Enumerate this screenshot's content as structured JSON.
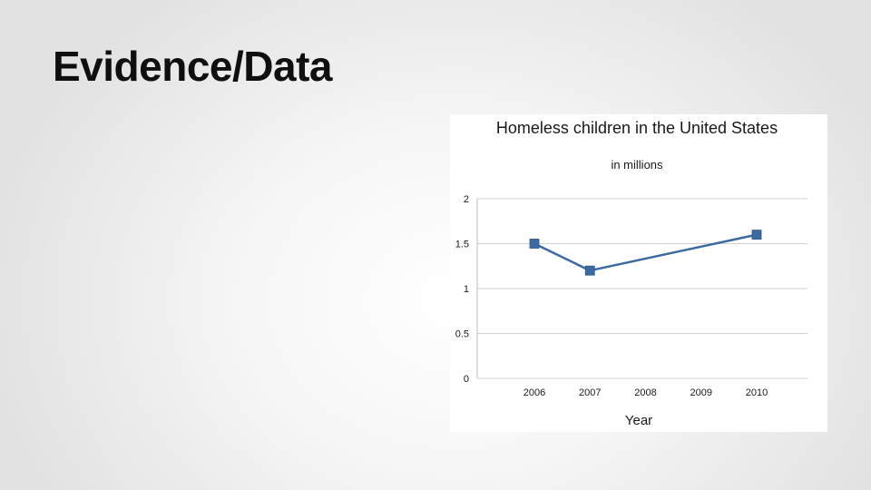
{
  "slide": {
    "title": "Evidence/Data"
  },
  "chart_data": {
    "type": "line",
    "title": "Homeless children in the United States",
    "subtitle": "in millions",
    "xlabel": "Year",
    "ylabel": "",
    "categories": [
      "2006",
      "2007",
      "2008",
      "2009",
      "2010"
    ],
    "series": [
      {
        "values": [
          1.5,
          1.2,
          null,
          null,
          1.6
        ],
        "color": "#3b6aa3",
        "marker": "square"
      }
    ],
    "ylim": [
      0,
      2
    ],
    "yticks": [
      0,
      0.5,
      1,
      1.5,
      2
    ],
    "ytick_labels": [
      "0",
      "0.5",
      "1",
      "1.5",
      "2"
    ],
    "grid": true,
    "legend": "none",
    "connect_gaps": true
  }
}
